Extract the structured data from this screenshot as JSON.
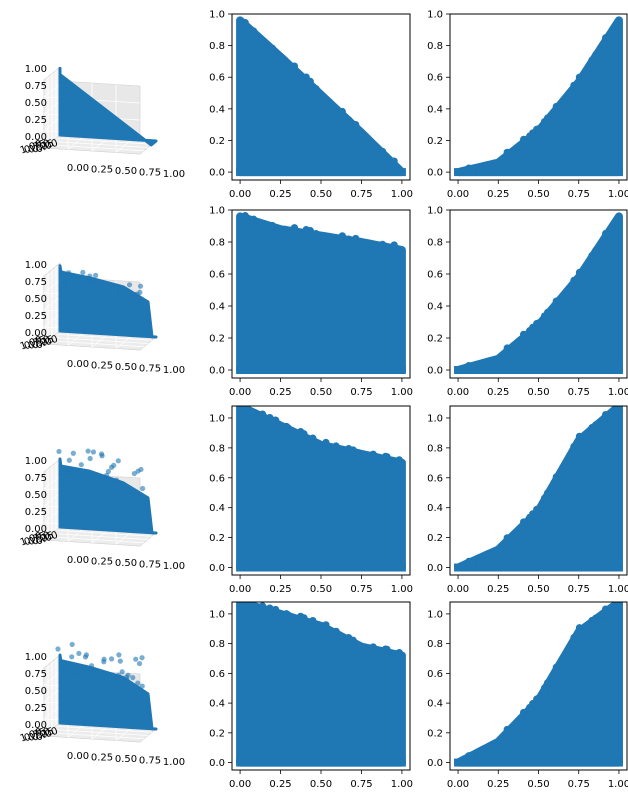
{
  "figure": {
    "marker_color": "#1f77b4"
  },
  "chart_data": [
    {
      "panel": "row1-3d",
      "type": "scatter",
      "projection": "3d",
      "axis_ticks": [
        "0.00",
        "0.25",
        "0.50",
        "0.75",
        "1.00"
      ],
      "title": "",
      "xlabel": "",
      "ylabel": "",
      "zlabel": "",
      "x_range": [
        0,
        1
      ],
      "y_range": [
        0,
        1
      ],
      "z_range": [
        0,
        1
      ],
      "description_shape": "flat triangle x+z<=1"
    },
    {
      "panel": "row1-mid",
      "type": "scatter",
      "title": "",
      "xlabel": "",
      "ylabel": "",
      "xlim": [
        -0.05,
        1.05
      ],
      "ylim": [
        -0.05,
        1.0
      ],
      "x_ticks": [
        "0.00",
        "0.25",
        "0.50",
        "0.75",
        "1.00"
      ],
      "y_ticks": [
        "0.0",
        "0.2",
        "0.4",
        "0.6",
        "0.8",
        "1.0"
      ],
      "envelope": {
        "x": [
          0,
          0.25,
          0.5,
          0.75,
          1.0
        ],
        "y_max": [
          0.96,
          0.73,
          0.49,
          0.25,
          0.0
        ]
      }
    },
    {
      "panel": "row1-right",
      "type": "scatter",
      "title": "",
      "xlabel": "",
      "ylabel": "",
      "xlim": [
        -0.05,
        1.05
      ],
      "ylim": [
        -0.05,
        1.0
      ],
      "x_ticks": [
        "0.00",
        "0.25",
        "0.50",
        "0.75",
        "1.00"
      ],
      "y_ticks": [
        "0.0",
        "0.2",
        "0.4",
        "0.6",
        "0.8",
        "1.0"
      ],
      "envelope": {
        "x": [
          0,
          0.25,
          0.5,
          0.75,
          1.0
        ],
        "y_max": [
          0.0,
          0.06,
          0.26,
          0.57,
          0.96
        ]
      }
    },
    {
      "panel": "row2-3d",
      "type": "scatter",
      "projection": "3d",
      "axis_ticks": [
        "0.00",
        "0.25",
        "0.50",
        "0.75",
        "1.00"
      ],
      "title": "",
      "xlabel": "",
      "ylabel": "",
      "zlabel": ""
    },
    {
      "panel": "row2-mid",
      "type": "scatter",
      "title": "",
      "xlabel": "",
      "ylabel": "",
      "xlim": [
        -0.05,
        1.05
      ],
      "ylim": [
        -0.05,
        1.0
      ],
      "x_ticks": [
        "0.00",
        "0.25",
        "0.50",
        "0.75",
        "1.00"
      ],
      "y_ticks": [
        "0.0",
        "0.2",
        "0.4",
        "0.6",
        "0.8",
        "1.0"
      ],
      "envelope": {
        "x": [
          0,
          0.25,
          0.5,
          0.75,
          1.0
        ],
        "y_max": [
          0.96,
          0.88,
          0.84,
          0.8,
          0.75
        ]
      }
    },
    {
      "panel": "row2-right",
      "type": "scatter",
      "title": "",
      "xlabel": "",
      "ylabel": "",
      "xlim": [
        -0.05,
        1.05
      ],
      "ylim": [
        -0.05,
        1.0
      ],
      "x_ticks": [
        "0.00",
        "0.25",
        "0.50",
        "0.75",
        "1.00"
      ],
      "y_ticks": [
        "0.0",
        "0.2",
        "0.4",
        "0.6",
        "0.8",
        "1.0"
      ],
      "envelope": {
        "x": [
          0,
          0.25,
          0.5,
          0.75,
          1.0
        ],
        "y_max": [
          0.0,
          0.07,
          0.28,
          0.58,
          0.96
        ]
      }
    },
    {
      "panel": "row3-3d",
      "type": "scatter",
      "projection": "3d",
      "axis_ticks": [
        "0.00",
        "0.25",
        "0.50",
        "0.75",
        "1.00"
      ],
      "title": "",
      "xlabel": "",
      "ylabel": "",
      "zlabel": ""
    },
    {
      "panel": "row3-mid",
      "type": "scatter",
      "title": "",
      "xlabel": "",
      "ylabel": "",
      "xlim": [
        -0.05,
        1.05
      ],
      "ylim": [
        -0.05,
        1.08
      ],
      "x_ticks": [
        "0.00",
        "0.25",
        "0.50",
        "0.75",
        "1.00"
      ],
      "y_ticks": [
        "0.0",
        "0.2",
        "0.4",
        "0.6",
        "0.8",
        "1.0"
      ],
      "envelope": {
        "x": [
          0,
          0.25,
          0.5,
          0.75,
          1.0
        ],
        "y_max": [
          1.08,
          0.95,
          0.82,
          0.76,
          0.7
        ]
      }
    },
    {
      "panel": "row3-right",
      "type": "scatter",
      "title": "",
      "xlabel": "",
      "ylabel": "",
      "xlim": [
        -0.05,
        1.05
      ],
      "ylim": [
        -0.05,
        1.08
      ],
      "x_ticks": [
        "0.00",
        "0.25",
        "0.50",
        "0.75",
        "1.00"
      ],
      "y_ticks": [
        "0.0",
        "0.2",
        "0.4",
        "0.6",
        "0.8",
        "1.0"
      ],
      "envelope": {
        "x": [
          0,
          0.25,
          0.5,
          0.75,
          1.0
        ],
        "y_max": [
          0.0,
          0.12,
          0.38,
          0.85,
          1.08
        ]
      }
    },
    {
      "panel": "row4-3d",
      "type": "scatter",
      "projection": "3d",
      "axis_ticks": [
        "0.00",
        "0.25",
        "0.50",
        "0.75",
        "1.00"
      ],
      "title": "",
      "xlabel": "",
      "ylabel": "",
      "zlabel": ""
    },
    {
      "panel": "row4-mid",
      "type": "scatter",
      "title": "",
      "xlabel": "",
      "ylabel": "",
      "xlim": [
        -0.05,
        1.05
      ],
      "ylim": [
        -0.05,
        1.08
      ],
      "x_ticks": [
        "0.00",
        "0.25",
        "0.50",
        "0.75",
        "1.00"
      ],
      "y_ticks": [
        "0.0",
        "0.2",
        "0.4",
        "0.6",
        "0.8",
        "1.0"
      ],
      "envelope": {
        "x": [
          0,
          0.25,
          0.5,
          0.75,
          1.0
        ],
        "y_max": [
          1.08,
          1.0,
          0.92,
          0.78,
          0.72
        ]
      }
    },
    {
      "panel": "row4-right",
      "type": "scatter",
      "title": "",
      "xlabel": "",
      "ylabel": "",
      "xlim": [
        -0.05,
        1.05
      ],
      "ylim": [
        -0.05,
        1.08
      ],
      "x_ticks": [
        "0.00",
        "0.25",
        "0.50",
        "0.75",
        "1.00"
      ],
      "y_ticks": [
        "0.0",
        "0.2",
        "0.4",
        "0.6",
        "0.8",
        "1.0"
      ],
      "envelope": {
        "x": [
          0,
          0.25,
          0.5,
          0.75,
          1.0
        ],
        "y_max": [
          0.0,
          0.14,
          0.42,
          0.88,
          1.08
        ]
      }
    }
  ]
}
